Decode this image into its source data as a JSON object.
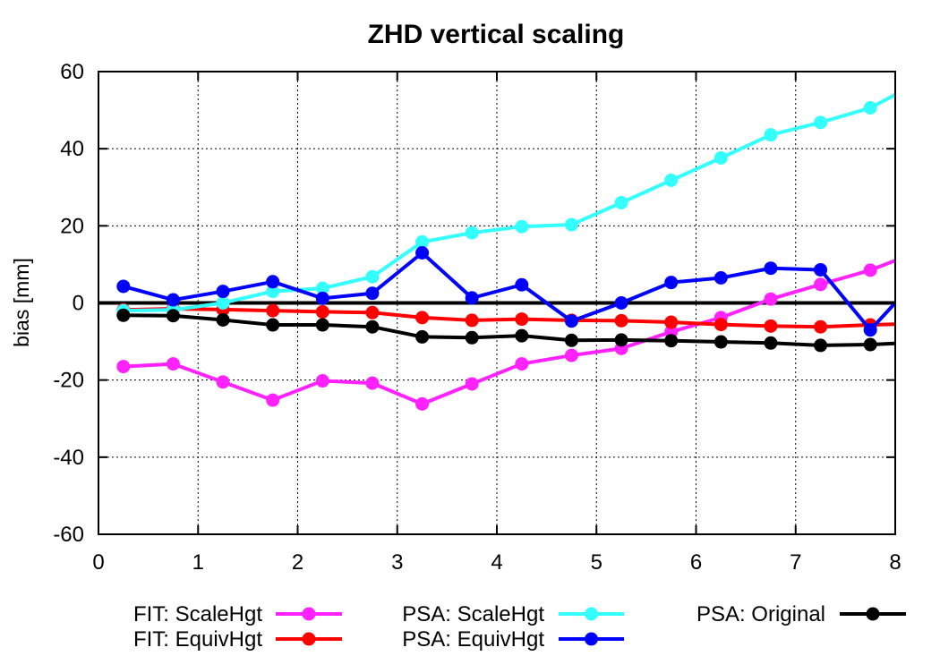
{
  "chart_data": {
    "type": "line",
    "title": "ZHD vertical scaling",
    "xlabel": "",
    "ylabel": "bias [mm]",
    "xlim": [
      0,
      8
    ],
    "ylim": [
      -60,
      60
    ],
    "xticks": [
      "0",
      "1",
      "2",
      "3",
      "4",
      "5",
      "6",
      "7",
      "8"
    ],
    "yticks": [
      "-60",
      "-40",
      "-20",
      "0",
      "20",
      "40",
      "60"
    ],
    "grid": true,
    "zero_line": true,
    "legend_placement": "bottom",
    "x": [
      0.25,
      0.75,
      1.25,
      1.75,
      2.25,
      2.75,
      3.25,
      3.75,
      4.25,
      4.75,
      5.25,
      5.75,
      6.25,
      6.75,
      7.25,
      7.75,
      8.0
    ],
    "series": [
      {
        "name": "FIT: ScaleHgt",
        "color": "#ff22ff",
        "values": [
          -16.5,
          -15.8,
          -20.5,
          -25.2,
          -20.2,
          -20.8,
          -26.2,
          -21.0,
          -15.8,
          -13.6,
          -11.8,
          -7.5,
          -3.8,
          1.0,
          4.8,
          8.5,
          11.0
        ]
      },
      {
        "name": "FIT: EquivHgt",
        "color": "#ff0000",
        "values": [
          -1.8,
          -1.5,
          -1.7,
          -2.0,
          -2.3,
          -2.5,
          -3.8,
          -4.5,
          -4.2,
          -4.5,
          -4.6,
          -5.0,
          -5.6,
          -6.0,
          -6.2,
          -5.7,
          -5.5
        ]
      },
      {
        "name": "PSA: ScaleHgt",
        "color": "#33ffff",
        "values": [
          -2.0,
          -1.8,
          0.0,
          3.0,
          3.8,
          6.8,
          15.8,
          18.2,
          19.8,
          20.3,
          26.0,
          31.8,
          37.6,
          43.6,
          46.8,
          50.6,
          54.0
        ]
      },
      {
        "name": "PSA: EquivHgt",
        "color": "#0000ff",
        "values": [
          4.3,
          0.8,
          3.0,
          5.5,
          1.2,
          2.5,
          13.0,
          1.3,
          4.7,
          -4.7,
          0.0,
          5.3,
          6.5,
          9.0,
          8.6,
          -7.0,
          0.0
        ]
      },
      {
        "name": "PSA: Original",
        "color": "#000000",
        "values": [
          -3.2,
          -3.3,
          -4.4,
          -5.7,
          -5.7,
          -6.2,
          -8.8,
          -9.0,
          -8.5,
          -9.7,
          -9.6,
          -9.8,
          -10.1,
          -10.4,
          -11.0,
          -10.8,
          -10.5
        ]
      }
    ]
  }
}
